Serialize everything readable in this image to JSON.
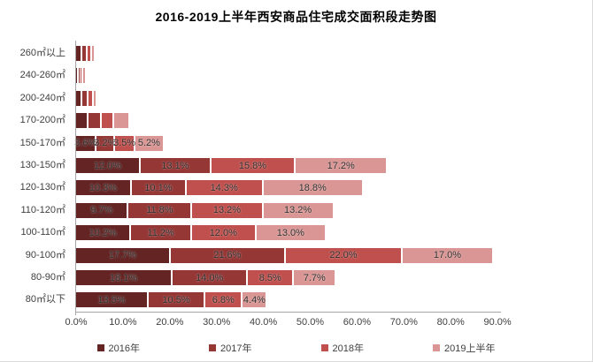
{
  "chart_data": {
    "type": "bar",
    "orientation": "horizontal",
    "stacked": true,
    "title": "2016-2019上半年西安商品住宅成交面积段走势图",
    "categories": [
      "260㎡以上",
      "240-260㎡",
      "200-240㎡",
      "170-200㎡",
      "150-170㎡",
      "130-150㎡",
      "120-130㎡",
      "110-120㎡",
      "100-110㎡",
      "90-100㎡",
      "80-90㎡",
      "80㎡以下"
    ],
    "series": [
      {
        "name": "2016年",
        "color": "#632423",
        "values": [
          0.9,
          0.1,
          0.9,
          2.1,
          3.6,
          12.0,
          10.3,
          9.7,
          10.2,
          17.7,
          18.1,
          13.5
        ]
      },
      {
        "name": "2017年",
        "color": "#953735",
        "values": [
          0.7,
          0.1,
          0.8,
          2.2,
          3.2,
          13.1,
          10.1,
          11.8,
          11.2,
          21.6,
          14.0,
          10.5
        ]
      },
      {
        "name": "2018年",
        "color": "#C0504D",
        "values": [
          0.5,
          0.1,
          0.6,
          2.0,
          3.5,
          15.8,
          14.3,
          13.2,
          12.0,
          22.0,
          8.5,
          6.8
        ]
      },
      {
        "name": "2019上半年",
        "color": "#D99694",
        "values": [
          0.2,
          0.3,
          0.4,
          2.6,
          5.2,
          17.2,
          18.8,
          13.2,
          13.0,
          17.0,
          7.7,
          4.4
        ]
      }
    ],
    "value_labels_visible_per_category": [
      false,
      false,
      false,
      false,
      true,
      true,
      true,
      true,
      true,
      true,
      true,
      true
    ],
    "value_label_format": "0.0%",
    "x_ticks": [
      "0.0%",
      "10.0%",
      "20.0%",
      "30.0%",
      "40.0%",
      "50.0%",
      "60.0%",
      "70.0%",
      "80.0%",
      "90.0%"
    ],
    "xlim": [
      0,
      90
    ],
    "grid": false,
    "legend_position": "bottom"
  }
}
